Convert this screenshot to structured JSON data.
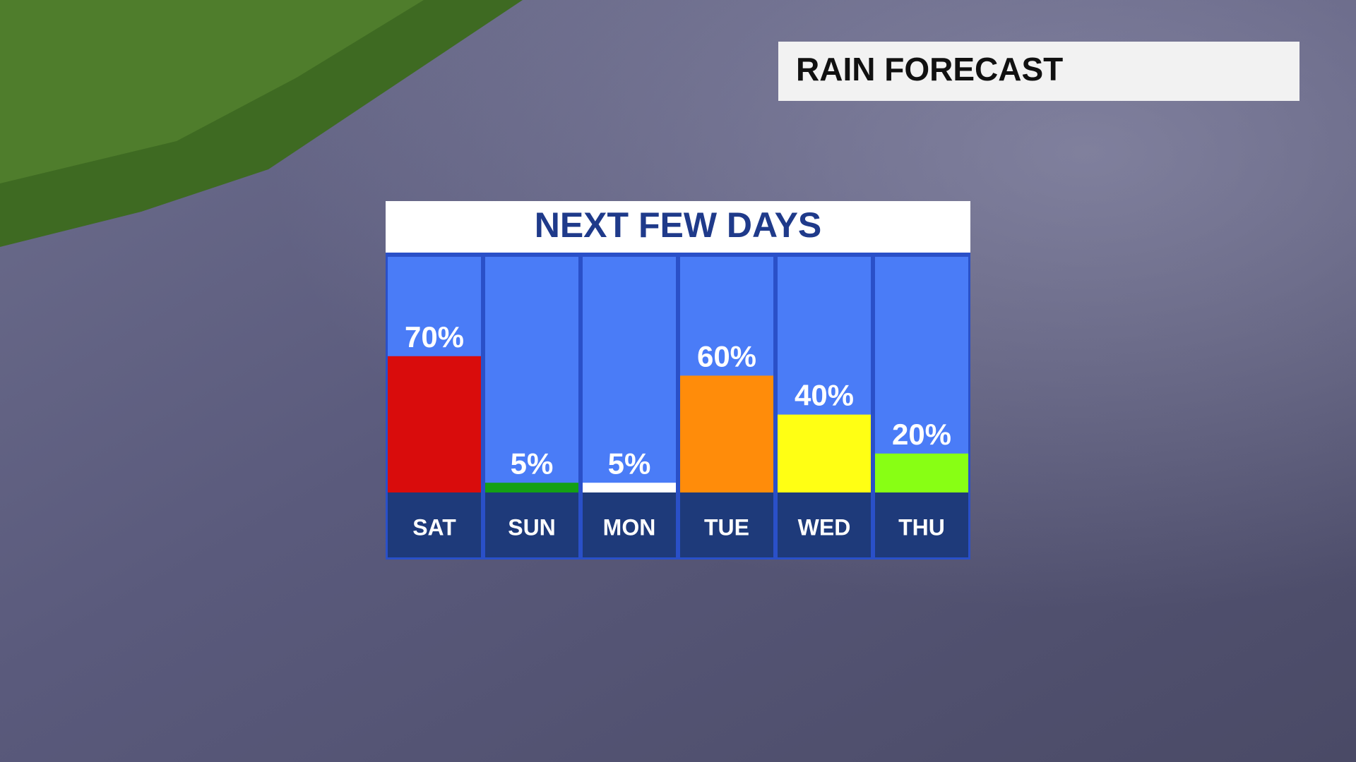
{
  "header": {
    "title": "RAIN FORECAST"
  },
  "chart_data": {
    "type": "bar",
    "title": "NEXT FEW DAYS",
    "categories": [
      "SAT",
      "SUN",
      "MON",
      "TUE",
      "WED",
      "THU"
    ],
    "values": [
      70,
      5,
      5,
      60,
      40,
      20
    ],
    "value_labels": [
      "70%",
      "5%",
      "5%",
      "60%",
      "40%",
      "20%"
    ],
    "colors": [
      "#d90c0c",
      "#14a014",
      "#ffffff",
      "#ff8c0a",
      "#ffff14",
      "#88ff14"
    ]
  }
}
